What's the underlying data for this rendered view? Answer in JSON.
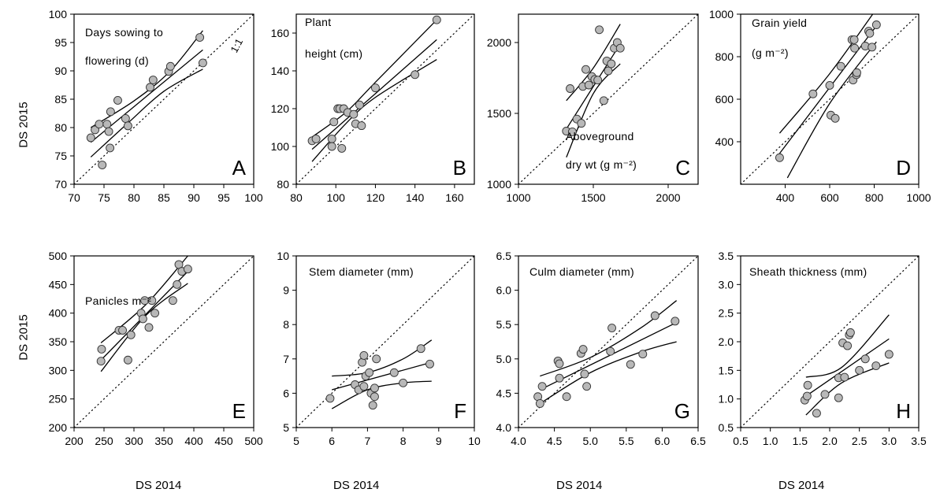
{
  "figure": {
    "y_axis_label": "DS 2015",
    "x_axis_labels": [
      "DS 2014",
      "DS 2014",
      "DS 2014",
      "DS 2014"
    ],
    "colors": {
      "point_fill": "#b8b8b8",
      "point_stroke": "#333333",
      "line": "#000000",
      "axis": "#000000"
    }
  },
  "chart_data": [
    {
      "type": "scatter",
      "panel_letter": "A",
      "label_lines": [
        "Days sowing to",
        "flowering (d)"
      ],
      "identity_line_label": "1:1",
      "xlim": [
        70,
        100
      ],
      "ylim": [
        70,
        100
      ],
      "xticks": [
        70,
        75,
        80,
        85,
        90,
        95,
        100
      ],
      "yticks": [
        70,
        75,
        80,
        85,
        90,
        95,
        100
      ],
      "tick_labels_x": [
        "70",
        "75",
        "80",
        "85",
        "90",
        "95",
        "100"
      ],
      "tick_labels_y": [
        "70",
        "75",
        "80",
        "85",
        "90",
        "95",
        "100"
      ],
      "points": [
        [
          72.8,
          78.2
        ],
        [
          73.5,
          79.6
        ],
        [
          74.2,
          80.6
        ],
        [
          74.7,
          73.4
        ],
        [
          75.5,
          80.6
        ],
        [
          75.8,
          79.3
        ],
        [
          76.0,
          76.4
        ],
        [
          76.1,
          82.8
        ],
        [
          77.3,
          84.8
        ],
        [
          78.6,
          81.6
        ],
        [
          79.0,
          80.3
        ],
        [
          82.7,
          87.1
        ],
        [
          83.2,
          88.4
        ],
        [
          85.8,
          89.9
        ],
        [
          86.1,
          90.8
        ],
        [
          91.0,
          95.9
        ],
        [
          91.5,
          91.4
        ]
      ],
      "fit": [
        [
          72.8,
          77.4
        ],
        [
          91.5,
          93.7
        ]
      ],
      "ci_upper": [
        [
          72.8,
          80.0
        ],
        [
          80,
          84.7
        ],
        [
          86,
          89.9
        ],
        [
          91.5,
          97.1
        ]
      ],
      "ci_lower": [
        [
          72.8,
          74.8
        ],
        [
          79,
          80.8
        ],
        [
          85,
          86.4
        ],
        [
          91.5,
          90.3
        ]
      ]
    },
    {
      "type": "scatter",
      "panel_letter": "B",
      "label_lines": [
        "Plant",
        "height (cm)"
      ],
      "xlim": [
        80,
        170
      ],
      "ylim": [
        80,
        170
      ],
      "xticks": [
        80,
        100,
        120,
        140,
        160
      ],
      "yticks": [
        80,
        100,
        120,
        140,
        160
      ],
      "tick_labels_x": [
        "80",
        "100",
        "120",
        "140",
        "160"
      ],
      "tick_labels_y": [
        "80",
        "100",
        "120",
        "140",
        "160"
      ],
      "points": [
        [
          88,
          103
        ],
        [
          90,
          104
        ],
        [
          98,
          104
        ],
        [
          98,
          100
        ],
        [
          99,
          113
        ],
        [
          101,
          120
        ],
        [
          102,
          120
        ],
        [
          103,
          99
        ],
        [
          104,
          120
        ],
        [
          106,
          118
        ],
        [
          109,
          117
        ],
        [
          110,
          112
        ],
        [
          112,
          122
        ],
        [
          113,
          111
        ],
        [
          120,
          131
        ],
        [
          140,
          138
        ],
        [
          151,
          167
        ]
      ],
      "fit": [
        [
          88,
          98.5
        ],
        [
          151,
          156.5
        ]
      ],
      "ci_upper": [
        [
          88,
          105
        ],
        [
          105,
          118
        ],
        [
          120,
          134
        ],
        [
          151,
          167
        ]
      ],
      "ci_lower": [
        [
          88,
          92
        ],
        [
          105,
          112
        ],
        [
          120,
          126
        ],
        [
          151,
          146
        ]
      ]
    },
    {
      "type": "scatter",
      "panel_letter": "C",
      "label_lines": [
        "Aboveground",
        "dry wt (g m⁻²)"
      ],
      "xlim": [
        1000,
        2200
      ],
      "ylim": [
        1000,
        2200
      ],
      "xticks": [
        1000,
        1500,
        2000
      ],
      "yticks": [
        1000,
        1500,
        2000
      ],
      "tick_labels_x": [
        "1000",
        "1500",
        "2000"
      ],
      "tick_labels_y": [
        "1000",
        "1500",
        "2000"
      ],
      "points": [
        [
          1320,
          1375
        ],
        [
          1345,
          1675
        ],
        [
          1360,
          1370
        ],
        [
          1390,
          1460
        ],
        [
          1420,
          1430
        ],
        [
          1430,
          1690
        ],
        [
          1450,
          1810
        ],
        [
          1470,
          1700
        ],
        [
          1490,
          1760
        ],
        [
          1510,
          1740
        ],
        [
          1530,
          1735
        ],
        [
          1540,
          2090
        ],
        [
          1570,
          1590
        ],
        [
          1590,
          1870
        ],
        [
          1600,
          1800
        ],
        [
          1620,
          1850
        ],
        [
          1640,
          1960
        ],
        [
          1660,
          2000
        ],
        [
          1680,
          1960
        ]
      ],
      "fit": [
        [
          1320,
          1390
        ],
        [
          1680,
          1990
        ]
      ],
      "ci_upper": [
        [
          1320,
          1590
        ],
        [
          1500,
          1820
        ],
        [
          1680,
          2130
        ]
      ],
      "ci_lower": [
        [
          1320,
          1190
        ],
        [
          1500,
          1640
        ],
        [
          1680,
          1850
        ]
      ]
    },
    {
      "type": "scatter",
      "panel_letter": "D",
      "label_lines": [
        "Grain yield",
        "(g m⁻²)"
      ],
      "xlim": [
        200,
        1000
      ],
      "ylim": [
        200,
        1000
      ],
      "xticks": [
        400,
        600,
        800,
        1000
      ],
      "yticks": [
        400,
        600,
        800,
        1000
      ],
      "tick_labels_x": [
        "400",
        "600",
        "800",
        "1000"
      ],
      "tick_labels_y": [
        "400",
        "600",
        "800",
        "1000"
      ],
      "points": [
        [
          375,
          325
        ],
        [
          525,
          625
        ],
        [
          600,
          665
        ],
        [
          605,
          525
        ],
        [
          625,
          510
        ],
        [
          650,
          755
        ],
        [
          700,
          880
        ],
        [
          705,
          690
        ],
        [
          710,
          880
        ],
        [
          712,
          840
        ],
        [
          720,
          715
        ],
        [
          722,
          725
        ],
        [
          760,
          850
        ],
        [
          775,
          920
        ],
        [
          780,
          910
        ],
        [
          790,
          845
        ],
        [
          810,
          950
        ]
      ],
      "fit": [
        [
          375,
          345
        ],
        [
          810,
          945
        ]
      ],
      "ci_upper": [
        [
          375,
          440
        ],
        [
          600,
          720
        ],
        [
          800,
          1010
        ]
      ],
      "ci_lower": [
        [
          410,
          230
        ],
        [
          600,
          580
        ],
        [
          810,
          870
        ]
      ]
    },
    {
      "type": "scatter",
      "panel_letter": "E",
      "label_lines": [
        "Panicles m⁻²"
      ],
      "xlim": [
        200,
        500
      ],
      "ylim": [
        200,
        500
      ],
      "xticks": [
        200,
        250,
        300,
        350,
        400,
        450,
        500
      ],
      "yticks": [
        200,
        250,
        300,
        350,
        400,
        450,
        500
      ],
      "tick_labels_x": [
        "200",
        "250",
        "300",
        "350",
        "400",
        "450",
        "500"
      ],
      "tick_labels_y": [
        "200",
        "250",
        "300",
        "350",
        "400",
        "450",
        "500"
      ],
      "points": [
        [
          245,
          316
        ],
        [
          246,
          337
        ],
        [
          275,
          370
        ],
        [
          281,
          370
        ],
        [
          290,
          318
        ],
        [
          295,
          362
        ],
        [
          312,
          400
        ],
        [
          315,
          390
        ],
        [
          318,
          422
        ],
        [
          325,
          375
        ],
        [
          330,
          422
        ],
        [
          335,
          400
        ],
        [
          365,
          422
        ],
        [
          372,
          450
        ],
        [
          375,
          485
        ],
        [
          380,
          473
        ],
        [
          390,
          477
        ]
      ],
      "fit": [
        [
          245,
          318
        ],
        [
          390,
          473
        ]
      ],
      "ci_upper": [
        [
          245,
          348
        ],
        [
          320,
          415
        ],
        [
          390,
          500
        ]
      ],
      "ci_lower": [
        [
          245,
          298
        ],
        [
          320,
          396
        ],
        [
          390,
          452
        ]
      ]
    },
    {
      "type": "scatter",
      "panel_letter": "F",
      "label_lines": [
        "Stem diameter (mm)"
      ],
      "xlim": [
        5,
        10
      ],
      "ylim": [
        5,
        10
      ],
      "xticks": [
        5,
        6,
        7,
        8,
        9,
        10
      ],
      "yticks": [
        5,
        6,
        7,
        8,
        9,
        10
      ],
      "tick_labels_x": [
        "5",
        "6",
        "7",
        "8",
        "9",
        "10"
      ],
      "tick_labels_y": [
        "5",
        "6",
        "7",
        "8",
        "9",
        "10"
      ],
      "points": [
        [
          5.95,
          5.85
        ],
        [
          6.65,
          6.25
        ],
        [
          6.75,
          6.1
        ],
        [
          6.85,
          6.9
        ],
        [
          6.9,
          7.1
        ],
        [
          6.9,
          6.2
        ],
        [
          6.95,
          6.5
        ],
        [
          7.05,
          6.6
        ],
        [
          7.1,
          6.0
        ],
        [
          7.15,
          5.65
        ],
        [
          7.2,
          6.15
        ],
        [
          7.2,
          5.9
        ],
        [
          7.25,
          7.0
        ],
        [
          7.75,
          6.6
        ],
        [
          8.0,
          6.3
        ],
        [
          8.5,
          7.3
        ],
        [
          8.75,
          6.85
        ]
      ],
      "fit": [
        [
          6.0,
          6.1
        ],
        [
          8.8,
          6.9
        ]
      ],
      "ci_upper": [
        [
          6.0,
          6.5
        ],
        [
          7.0,
          6.6
        ],
        [
          8.0,
          7.0
        ],
        [
          8.8,
          7.55
        ]
      ],
      "ci_lower": [
        [
          6.0,
          5.55
        ],
        [
          7.0,
          6.1
        ],
        [
          8.0,
          6.3
        ],
        [
          8.8,
          6.35
        ]
      ]
    },
    {
      "type": "scatter",
      "panel_letter": "G",
      "label_lines": [
        "Culm diameter (mm)"
      ],
      "xlim": [
        4.0,
        6.5
      ],
      "ylim": [
        4.0,
        6.5
      ],
      "xticks": [
        4.0,
        4.5,
        5.0,
        5.5,
        6.0,
        6.5
      ],
      "yticks": [
        4.0,
        4.5,
        5.0,
        5.5,
        6.0,
        6.5
      ],
      "tick_labels_x": [
        "4.0",
        "4.5",
        "5.0",
        "5.5",
        "6.0",
        "6.5"
      ],
      "tick_labels_y": [
        "4.0",
        "4.5",
        "5.0",
        "5.5",
        "6.0",
        "6.5"
      ],
      "points": [
        [
          4.27,
          4.45
        ],
        [
          4.3,
          4.35
        ],
        [
          4.33,
          4.6
        ],
        [
          4.55,
          4.97
        ],
        [
          4.57,
          4.93
        ],
        [
          4.57,
          4.72
        ],
        [
          4.67,
          4.45
        ],
        [
          4.87,
          5.08
        ],
        [
          4.9,
          5.14
        ],
        [
          4.92,
          4.78
        ],
        [
          4.95,
          4.6
        ],
        [
          5.28,
          5.11
        ],
        [
          5.3,
          5.45
        ],
        [
          5.56,
          4.92
        ],
        [
          5.73,
          5.07
        ],
        [
          5.9,
          5.63
        ],
        [
          6.18,
          5.55
        ]
      ],
      "fit": [
        [
          4.3,
          4.55
        ],
        [
          6.2,
          5.53
        ]
      ],
      "ci_upper": [
        [
          4.3,
          4.75
        ],
        [
          5.0,
          5.02
        ],
        [
          5.7,
          5.45
        ],
        [
          6.2,
          5.85
        ]
      ],
      "ci_lower": [
        [
          4.3,
          4.35
        ],
        [
          5.0,
          4.8
        ],
        [
          5.7,
          5.1
        ],
        [
          6.2,
          5.25
        ]
      ]
    },
    {
      "type": "scatter",
      "panel_letter": "H",
      "label_lines": [
        "Sheath thickness (mm)"
      ],
      "xlim": [
        0.5,
        3.5
      ],
      "ylim": [
        0.5,
        3.5
      ],
      "xticks": [
        0.5,
        1.0,
        1.5,
        2.0,
        2.5,
        3.0,
        3.5
      ],
      "yticks": [
        0.5,
        1.0,
        1.5,
        2.0,
        2.5,
        3.0,
        3.5
      ],
      "tick_labels_x": [
        "0.5",
        "1.0",
        "1.5",
        "2.0",
        "2.5",
        "3.0",
        "3.5"
      ],
      "tick_labels_y": [
        "0.5",
        "1.0",
        "1.5",
        "2.0",
        "2.5",
        "3.0",
        "3.5"
      ],
      "points": [
        [
          1.58,
          0.98
        ],
        [
          1.62,
          1.05
        ],
        [
          1.63,
          1.24
        ],
        [
          1.78,
          0.75
        ],
        [
          1.92,
          1.08
        ],
        [
          2.15,
          1.37
        ],
        [
          2.15,
          1.02
        ],
        [
          2.22,
          1.98
        ],
        [
          2.25,
          1.38
        ],
        [
          2.3,
          1.93
        ],
        [
          2.33,
          2.12
        ],
        [
          2.35,
          2.16
        ],
        [
          2.5,
          1.5
        ],
        [
          2.6,
          1.7
        ],
        [
          2.78,
          1.58
        ],
        [
          3.0,
          1.78
        ]
      ],
      "fit": [
        [
          1.6,
          1.05
        ],
        [
          3.0,
          2.05
        ]
      ],
      "ci_upper": [
        [
          1.6,
          1.38
        ],
        [
          2.2,
          1.55
        ],
        [
          3.0,
          2.47
        ]
      ],
      "ci_lower": [
        [
          1.6,
          0.72
        ],
        [
          2.2,
          1.28
        ],
        [
          3.0,
          1.63
        ]
      ]
    }
  ]
}
